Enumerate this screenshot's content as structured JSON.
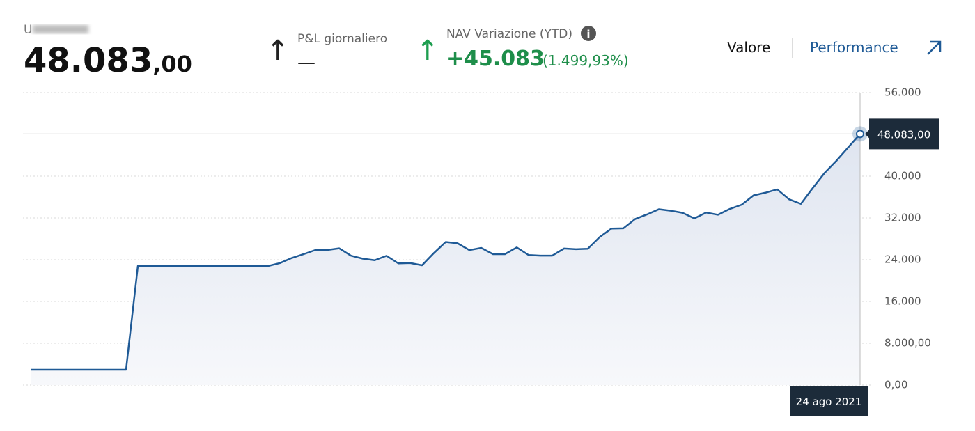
{
  "header": {
    "account_prefix": "U",
    "value_main": "48.083",
    "value_decimals": ",00",
    "pnl_label": "P&L giornaliero",
    "pnl_value": "—",
    "nav_label": "NAV Variazione (YTD)",
    "nav_change": "+45.083",
    "nav_change_pct": "(1.499,93%)",
    "tab_value": "Valore",
    "tab_performance": "Performance"
  },
  "chart_data": {
    "type": "line",
    "color": "#1f5a96",
    "categories": [
      null,
      null,
      null,
      null,
      null,
      null,
      null,
      null,
      null,
      null,
      null,
      null,
      null,
      null,
      null,
      null,
      null,
      null,
      null,
      null,
      null,
      null,
      null,
      null,
      null,
      null,
      null,
      null,
      null,
      null,
      null,
      null,
      null,
      null,
      null,
      null,
      null,
      null,
      null,
      null,
      null,
      null,
      null,
      null,
      null,
      null,
      null,
      null,
      null,
      null,
      null,
      null,
      null,
      null,
      null,
      null,
      null,
      null,
      null,
      null,
      null,
      null,
      null,
      null,
      null,
      null,
      null,
      null,
      null,
      null,
      "24 ago 2021"
    ],
    "values": [
      2933,
      2933,
      2933,
      2933,
      2933,
      2933,
      2933,
      2933,
      2933,
      22800,
      22800,
      22800,
      22800,
      22800,
      22800,
      22800,
      22800,
      22800,
      22800,
      22800,
      22800,
      23360,
      24330,
      25067,
      25867,
      25867,
      26190,
      24770,
      24200,
      23900,
      24750,
      23300,
      23370,
      22930,
      25280,
      27400,
      27150,
      25840,
      26270,
      25067,
      25067,
      26360,
      24900,
      24780,
      24790,
      26150,
      26010,
      26100,
      28330,
      29960,
      30010,
      31790,
      32670,
      33660,
      33390,
      32980,
      31920,
      33030,
      32610,
      33730,
      34533,
      36320,
      36830,
      37470,
      35580,
      34700,
      37720,
      40610,
      42950,
      45520,
      48083
    ],
    "crosshair_label": "48.083,00",
    "ylim": [
      0,
      56000
    ],
    "yticks": [
      {
        "value": 0,
        "label": "0,00"
      },
      {
        "value": 8000,
        "label": "8.000,00"
      },
      {
        "value": 16000,
        "label": "16.000"
      },
      {
        "value": 24000,
        "label": "24.000"
      },
      {
        "value": 32000,
        "label": "32.000"
      },
      {
        "value": 40000,
        "label": "40.000"
      },
      {
        "value": 56000,
        "label": "56.000"
      }
    ],
    "grid": true
  }
}
